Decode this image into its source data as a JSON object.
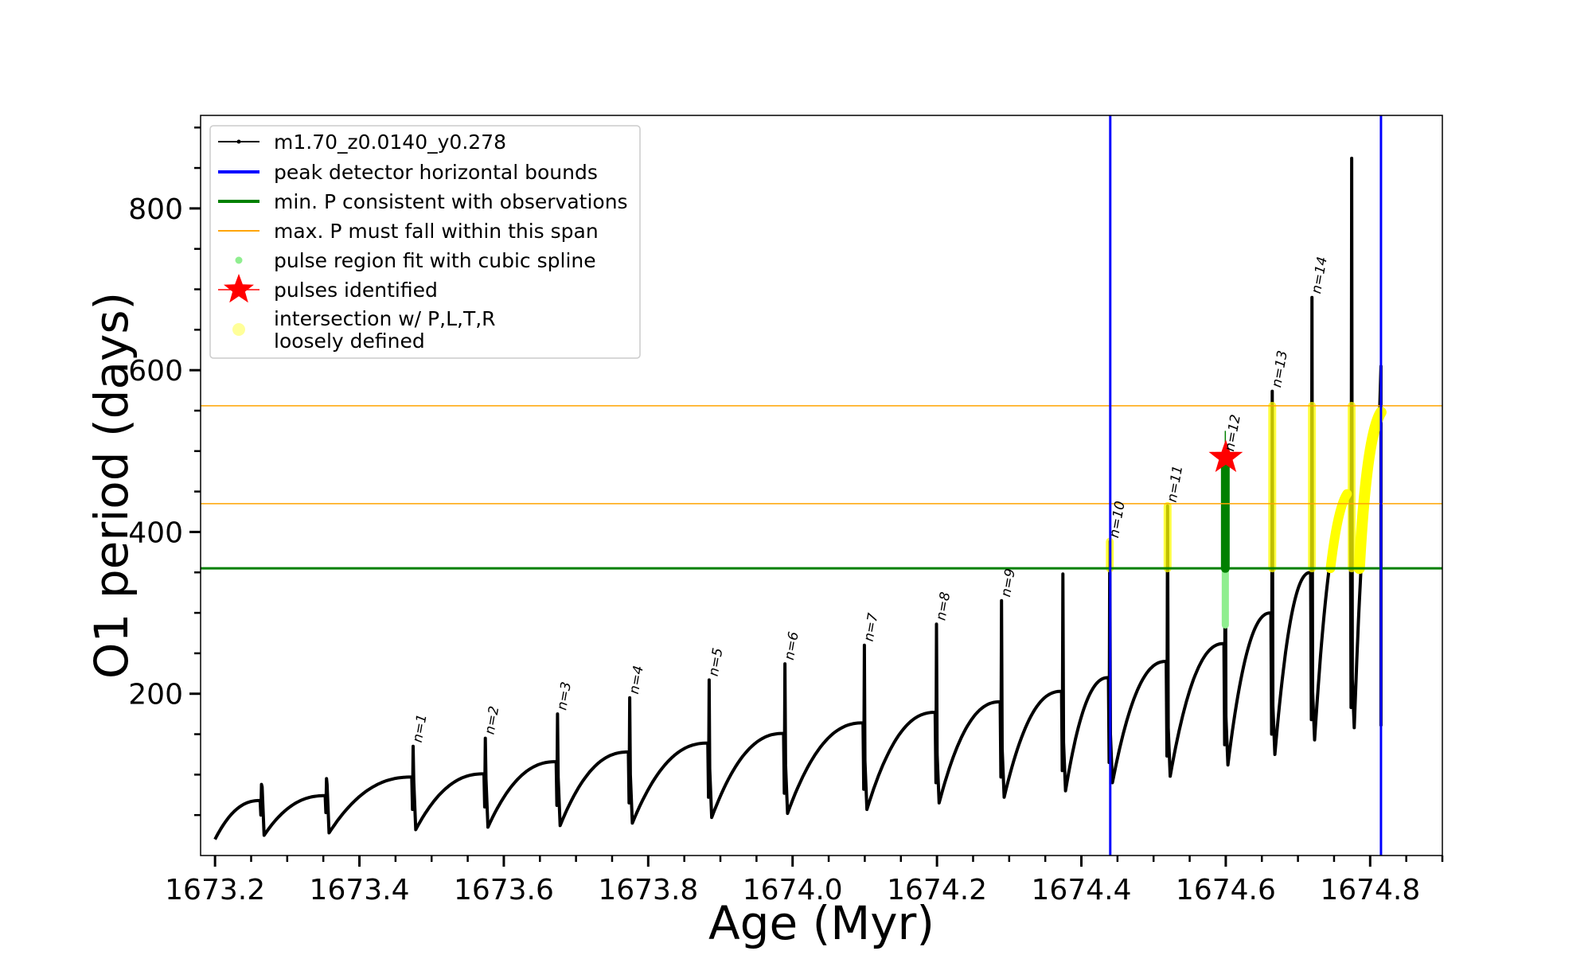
{
  "chart_data": {
    "type": "line",
    "title": "",
    "xlabel": "Age (Myr)",
    "ylabel": "O1 period (days)",
    "xlim": [
      1673.18,
      1674.9
    ],
    "ylim": [
      0,
      915
    ],
    "xticks": [
      1673.2,
      1673.4,
      1673.6,
      1673.8,
      1674.0,
      1674.2,
      1674.4,
      1674.6,
      1674.8
    ],
    "xtick_labels": [
      "1673.2",
      "1673.4",
      "1673.6",
      "1673.8",
      "1674.0",
      "1674.2",
      "1674.4",
      "1674.6",
      "1674.8"
    ],
    "yticks": [
      200,
      400,
      600,
      800
    ],
    "ytick_labels": [
      "200",
      "400",
      "600",
      "800"
    ],
    "grid": false,
    "legend_position": "top-left",
    "legend": [
      {
        "label": "m1.70_z0.0140_y0.278",
        "color": "#000000",
        "style": "line-marker"
      },
      {
        "label": "peak detector horizontal bounds",
        "color": "#0000ff",
        "style": "thick-line"
      },
      {
        "label": "min. P consistent with observations",
        "color": "#008000",
        "style": "thick-line"
      },
      {
        "label": "max. P must fall within this span",
        "color": "#ffa500",
        "style": "thin-line"
      },
      {
        "label": "pulse region fit with cubic spline",
        "color": "#90ee90",
        "style": "dot"
      },
      {
        "label": "pulses identified",
        "color": "#ff0000",
        "style": "star"
      },
      {
        "label_line1": "intersection w/ P,L,T,R",
        "label_line2": "loosely defined",
        "color": "#ffff99",
        "style": "big-dot"
      }
    ],
    "vertical_lines": [
      {
        "name": "peak detector horizontal bounds",
        "x": 1674.44,
        "color": "#0000ff"
      },
      {
        "name": "peak detector horizontal bounds",
        "x": 1674.815,
        "color": "#0000ff"
      }
    ],
    "horizontal_lines": [
      {
        "name": "min. P consistent with observations",
        "y": 355,
        "color": "#008000"
      },
      {
        "name": "max. P must fall within this span",
        "y": 435,
        "color": "#ffa500"
      },
      {
        "name": "max. P must fall within this span",
        "y": 556,
        "color": "#ffa500"
      }
    ],
    "pulses": [
      {
        "label": "n=1",
        "x": 1673.475,
        "peak": 135,
        "pre": 97,
        "min": 32
      },
      {
        "label": "n=2",
        "x": 1673.575,
        "peak": 145,
        "pre": 101,
        "min": 35
      },
      {
        "label": "n=3",
        "x": 1673.675,
        "peak": 175,
        "pre": 116,
        "min": 37
      },
      {
        "label": "n=4",
        "x": 1673.775,
        "peak": 195,
        "pre": 128,
        "min": 40
      },
      {
        "label": "n=5",
        "x": 1673.885,
        "peak": 217,
        "pre": 139,
        "min": 47
      },
      {
        "label": "n=6",
        "x": 1673.99,
        "peak": 237,
        "pre": 151,
        "min": 52
      },
      {
        "label": "n=7",
        "x": 1674.1,
        "peak": 260,
        "pre": 164,
        "min": 57
      },
      {
        "label": "n=8",
        "x": 1674.2,
        "peak": 286,
        "pre": 177,
        "min": 65
      },
      {
        "label": "n=9",
        "x": 1674.29,
        "peak": 315,
        "pre": 190,
        "min": 72
      },
      {
        "label": "n=10",
        "x": 1674.44,
        "peak": 388,
        "pre": 220,
        "min": 90
      },
      {
        "label": "n=11",
        "x": 1674.52,
        "peak": 432,
        "pre": 240,
        "min": 98
      },
      {
        "label": "n=12",
        "x": 1674.6,
        "peak": 495,
        "pre": 262,
        "min": 112
      },
      {
        "label": "n=13",
        "x": 1674.665,
        "peak": 574,
        "pre": 300,
        "min": 125
      },
      {
        "label": "n=14",
        "x": 1674.72,
        "peak": 690,
        "pre": 350,
        "min": 143
      }
    ],
    "unlabeled_pulses": [
      {
        "x": 1673.265,
        "peak": 88,
        "pre": 68,
        "min": 25
      },
      {
        "x": 1673.355,
        "peak": 95,
        "pre": 74,
        "min": 28
      },
      {
        "x": 1674.375,
        "peak": 348,
        "pre": 203,
        "min": 80
      },
      {
        "x": 1674.775,
        "peak": 862,
        "pre": 445,
        "min": 158
      }
    ],
    "track_start": {
      "x": 1673.2,
      "y": 20
    },
    "track_end": {
      "x": 1674.815,
      "y": 545
    },
    "identified_pulse_star": {
      "x": 1674.6,
      "y": 492
    }
  }
}
